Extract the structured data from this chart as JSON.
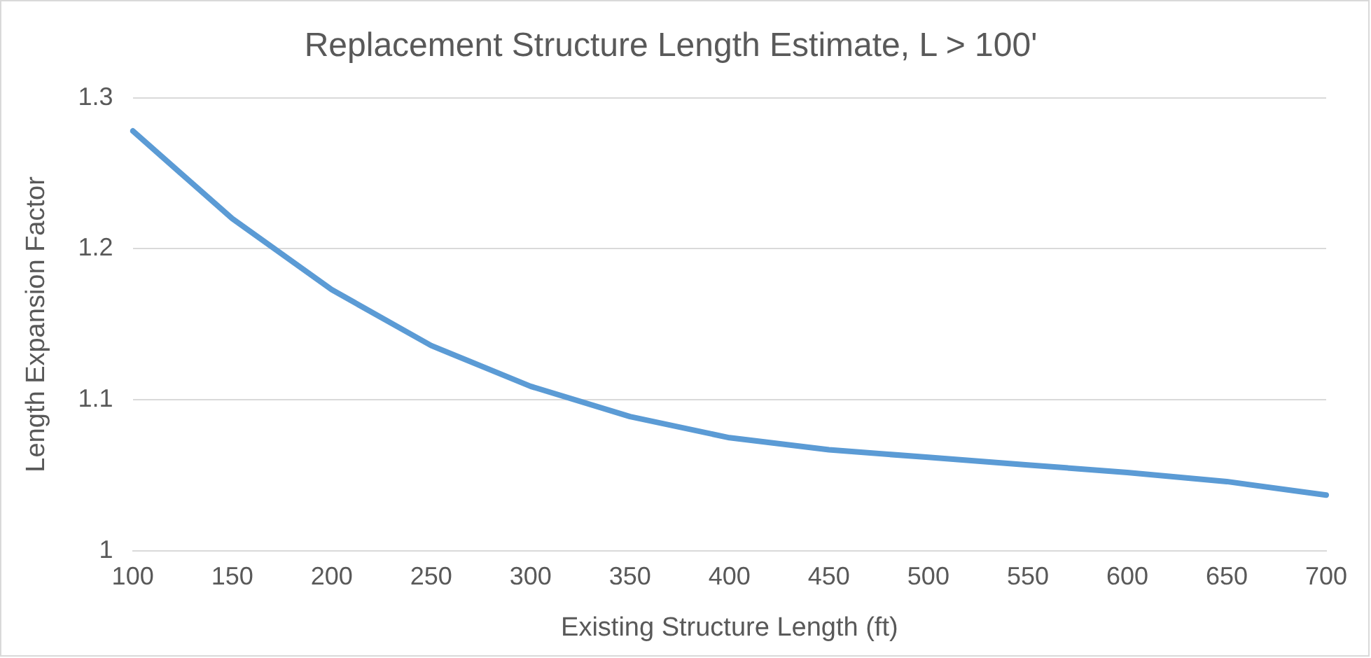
{
  "chart_data": {
    "type": "line",
    "title": "Replacement Structure Length Estimate, L > 100'",
    "xlabel": "Existing Structure Length (ft)",
    "ylabel": "Length Expansion Factor",
    "categories": [
      "100",
      "150",
      "200",
      "250",
      "300",
      "350",
      "400",
      "450",
      "500",
      "550",
      "600",
      "650",
      "700"
    ],
    "series": [
      {
        "color": "#5b9bd5",
        "values": [
          1.278,
          1.22,
          1.173,
          1.136,
          1.109,
          1.089,
          1.075,
          1.067,
          1.062,
          1.057,
          1.052,
          1.046,
          1.037
        ]
      }
    ],
    "ylim": [
      1,
      1.3
    ],
    "yticks": [
      1,
      1.1,
      1.2,
      1.3
    ],
    "grid": "y",
    "legend": false,
    "marker": "none",
    "line_style": "solid"
  }
}
